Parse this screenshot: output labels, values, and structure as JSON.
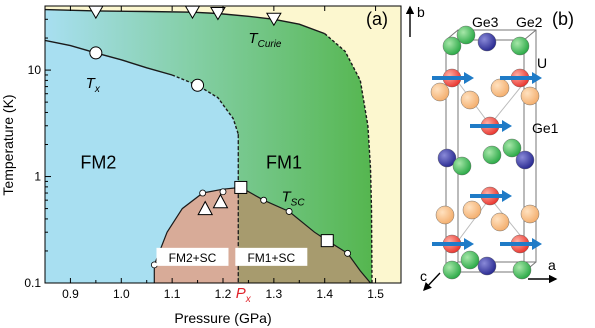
{
  "chart_data": [
    {
      "panel_label": "(a)",
      "type": "scatter",
      "xlabel": "Pressure (GPa)",
      "ylabel": "Temperature (K)",
      "xlim": [
        0.85,
        1.55
      ],
      "ylim": [
        0.1,
        40
      ],
      "yscale": "log",
      "x_ticks": [
        "0.9",
        "1.0",
        "1.1",
        "1.2",
        "1.3",
        "1.4",
        "1.5"
      ],
      "x_tick_values": [
        0.9,
        1.0,
        1.1,
        1.2,
        1.3,
        1.4,
        1.5
      ],
      "y_ticks": [
        "0.1",
        "1",
        "10"
      ],
      "y_tick_values": [
        0.1,
        1,
        10
      ],
      "px_label": "P",
      "px_label_sub": "x",
      "px_value": 1.23,
      "regions": [
        {
          "label": "FM2",
          "at": [
            0.955,
            1.35
          ]
        },
        {
          "label": "FM1",
          "at": [
            1.32,
            1.35
          ]
        },
        {
          "label": "FM2+SC",
          "at": [
            1.14,
            0.165
          ]
        },
        {
          "label": "FM1+SC",
          "at": [
            1.295,
            0.165
          ]
        }
      ],
      "curve_labels": [
        {
          "label": "T",
          "sub": "Curie",
          "at": [
            1.25,
            18
          ]
        },
        {
          "label": "T",
          "sub": "x",
          "at": [
            0.93,
            6.8
          ]
        },
        {
          "label": "T",
          "sub": "SC",
          "at": [
            1.315,
            0.58
          ]
        }
      ],
      "colors": {
        "fm2": "#a8dff1",
        "fm1": "#55b64f",
        "pm": "#fcf7cf",
        "sc_fm2": "#d8ab98",
        "sc_fm1": "#a79b6e",
        "curve": "#1a1a1a"
      },
      "series": [
        {
          "marker": "triangle-down",
          "x": [
            0.95,
            1.14,
            1.19,
            1.3
          ],
          "y": [
            35,
            35,
            34,
            30
          ]
        },
        {
          "marker": "circle",
          "x": [
            0.95,
            1.15
          ],
          "y": [
            14.5,
            7.2
          ]
        },
        {
          "marker": "triangle-up",
          "x": [
            1.165,
            1.195
          ],
          "y": [
            0.5,
            0.58
          ]
        },
        {
          "marker": "square",
          "x": [
            1.235,
            1.405
          ],
          "y": [
            0.79,
            0.25
          ]
        },
        {
          "marker": "small-circle",
          "x": [
            1.065,
            1.16,
            1.2,
            1.28,
            1.33,
            1.445
          ],
          "y": [
            0.148,
            0.7,
            0.72,
            0.6,
            0.47,
            0.19
          ]
        }
      ]
    }
  ],
  "crystal": {
    "panel_label": "(b)",
    "axis_b": "b",
    "axis_a": "a",
    "axis_c": "c",
    "labels": {
      "ge3": "Ge3",
      "ge2": "Ge2",
      "u": "U",
      "ge1": "Ge1"
    },
    "colors": {
      "u_atom": "#e8322c",
      "ge1": "#f3ad6c",
      "ge2": "#27a744",
      "ge3": "#26278f",
      "moment": "#1f7bc7",
      "cell": "#777777"
    }
  }
}
